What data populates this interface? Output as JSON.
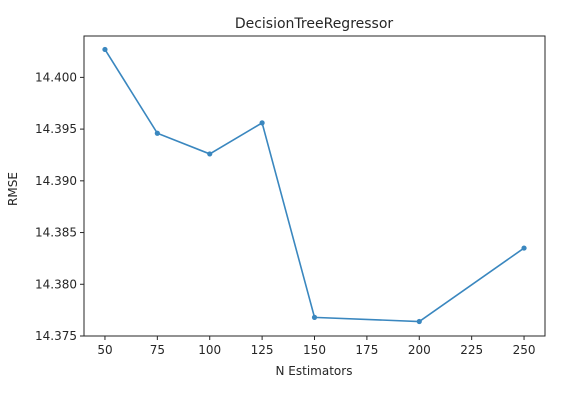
{
  "chart_data": {
    "type": "line",
    "title": "DecisionTreeRegressor",
    "xlabel": "N Estimators",
    "ylabel": "RMSE",
    "x": [
      50,
      75,
      100,
      125,
      150,
      200,
      250
    ],
    "series": [
      {
        "values": [
          14.4027,
          14.3946,
          14.3926,
          14.3956,
          14.3768,
          14.3764,
          14.3835
        ]
      }
    ],
    "xlim": [
      40,
      260
    ],
    "ylim": [
      14.375,
      14.404
    ],
    "xticks": [
      50,
      75,
      100,
      125,
      150,
      175,
      200,
      225,
      250
    ],
    "yticks": [
      14.375,
      14.38,
      14.385,
      14.39,
      14.395,
      14.4
    ],
    "xtick_labels": [
      "50",
      "75",
      "100",
      "125",
      "150",
      "175",
      "200",
      "225",
      "250"
    ],
    "ytick_labels": [
      "14.375",
      "14.380",
      "14.385",
      "14.390",
      "14.395",
      "14.400"
    ],
    "line_color": "#3a87bf",
    "marker": "dot",
    "grid": false,
    "legend": "none"
  }
}
